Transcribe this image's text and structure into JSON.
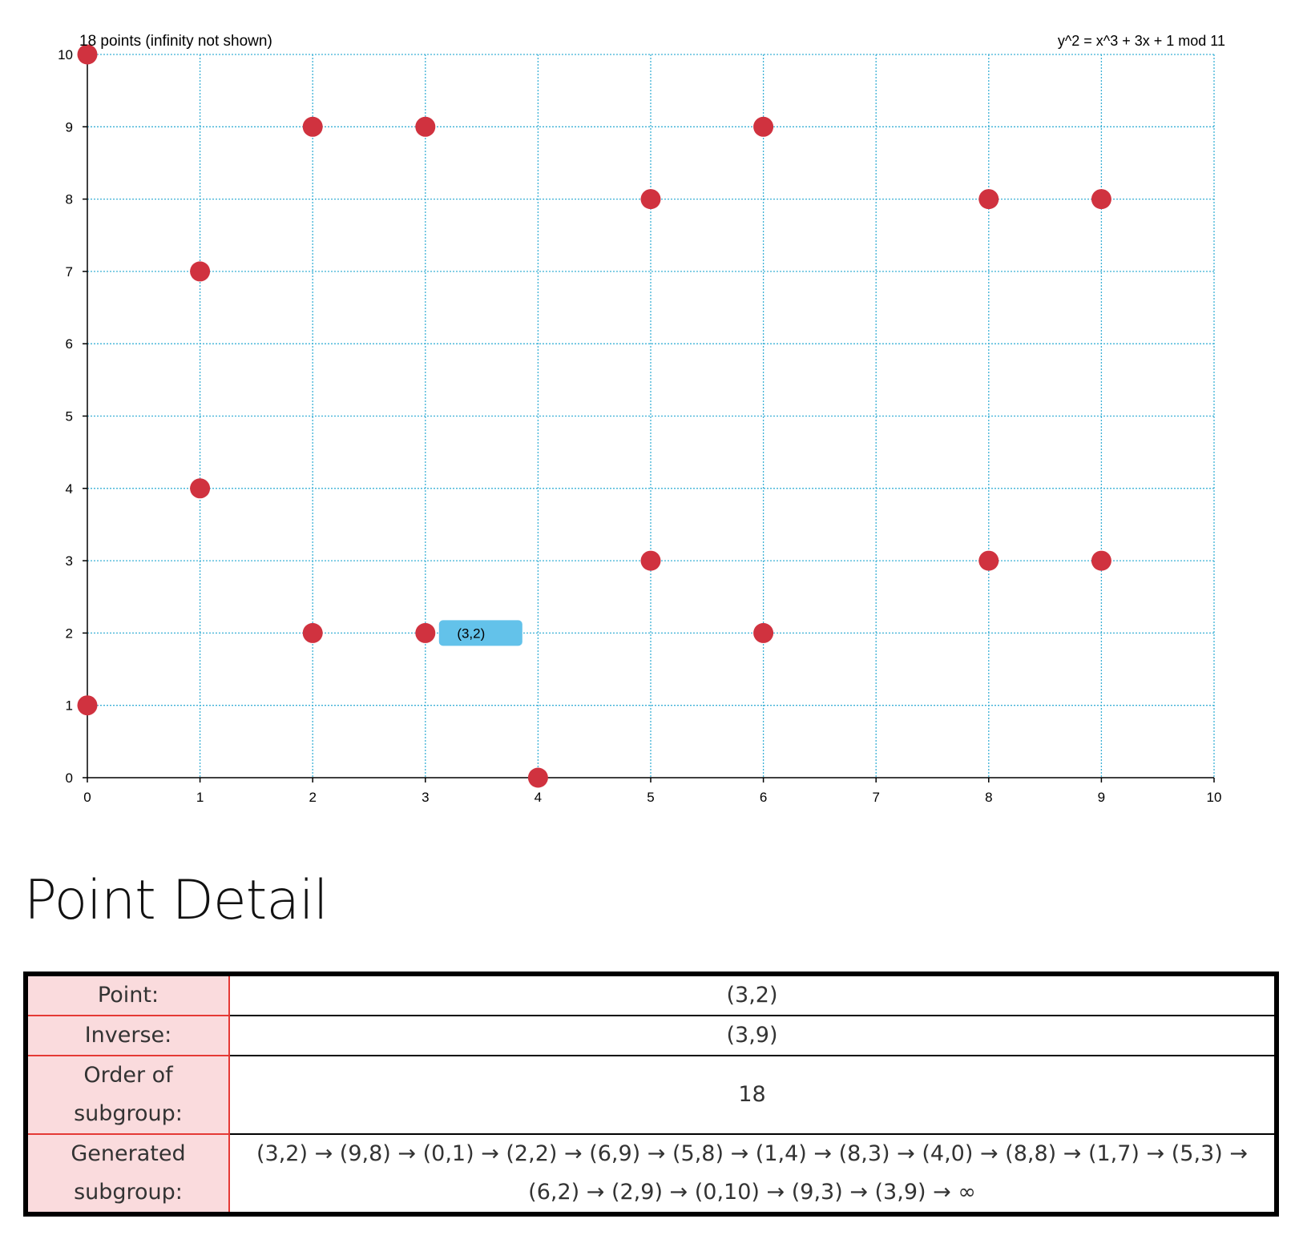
{
  "chart_data": {
    "type": "scatter",
    "title": "18 points (infinity not shown)",
    "equation": "y^2 = x^3 + 3x + 1 mod 11",
    "xlim": [
      0,
      10
    ],
    "ylim": [
      0,
      10
    ],
    "x_ticks": [
      0,
      1,
      2,
      3,
      4,
      5,
      6,
      7,
      8,
      9,
      10
    ],
    "y_ticks": [
      0,
      1,
      2,
      3,
      4,
      5,
      6,
      7,
      8,
      9,
      10
    ],
    "grid": true,
    "points": [
      {
        "x": 0,
        "y": 1
      },
      {
        "x": 0,
        "y": 10
      },
      {
        "x": 1,
        "y": 4
      },
      {
        "x": 1,
        "y": 7
      },
      {
        "x": 2,
        "y": 2
      },
      {
        "x": 2,
        "y": 9
      },
      {
        "x": 3,
        "y": 2
      },
      {
        "x": 3,
        "y": 9
      },
      {
        "x": 4,
        "y": 0
      },
      {
        "x": 5,
        "y": 3
      },
      {
        "x": 5,
        "y": 8
      },
      {
        "x": 6,
        "y": 2
      },
      {
        "x": 6,
        "y": 9
      },
      {
        "x": 8,
        "y": 3
      },
      {
        "x": 8,
        "y": 8
      },
      {
        "x": 9,
        "y": 3
      },
      {
        "x": 9,
        "y": 8
      }
    ],
    "highlight": {
      "x": 3,
      "y": 2,
      "label": "(3,2)"
    },
    "colors": {
      "point": "#d0323f",
      "grid": "#3ab0d6",
      "tooltip": "#63c2ea",
      "axis": "#000000"
    }
  },
  "detail": {
    "title": "Point Detail",
    "rows": [
      {
        "label": "Point:",
        "value": "(3,2)"
      },
      {
        "label": "Inverse:",
        "value": "(3,9)"
      },
      {
        "label": "Order of subgroup:",
        "value": "18"
      },
      {
        "label": "Generated subgroup:",
        "value": "(3,2) → (9,8) → (0,1) → (2,2) → (6,9) → (5,8) → (1,4) → (8,3) → (4,0) → (8,8) → (1,7) → (5,3) → (6,2) → (2,9) → (0,10) → (9,3) → (3,9) → ∞"
      }
    ]
  }
}
